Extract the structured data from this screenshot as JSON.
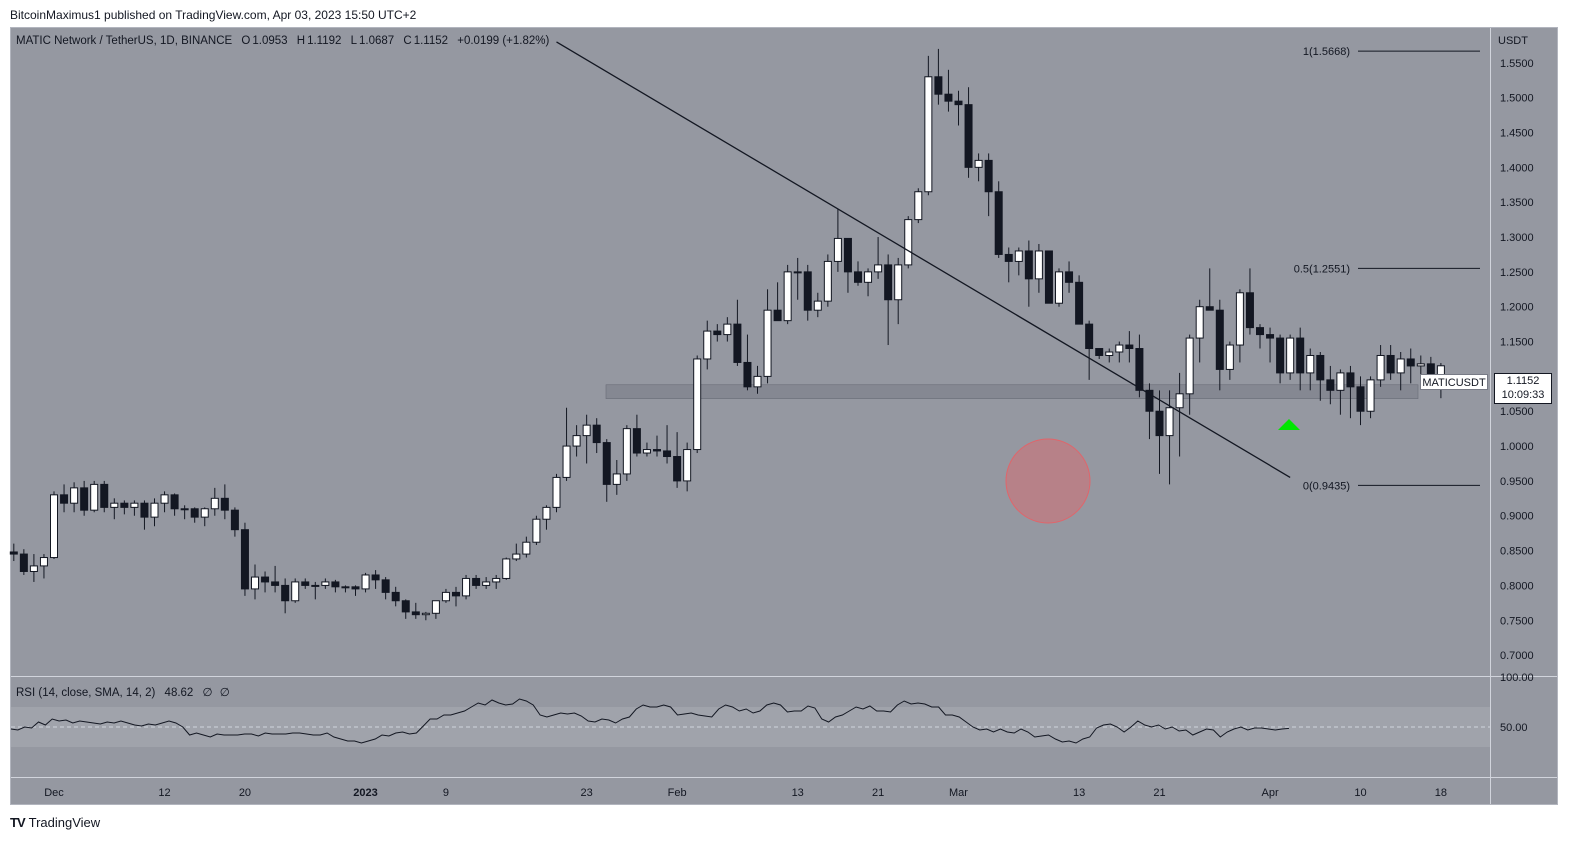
{
  "caption": "BitcoinMaximus1 published on TradingView.com, Apr 03, 2023 15:50 UTC+2",
  "header": {
    "symbol": "MATIC Network / TetherUS, 1D, BINANCE",
    "o_label": "O",
    "o_value": "1.0953",
    "h_label": "H",
    "h_value": "1.1192",
    "l_label": "L",
    "l_value": "1.0687",
    "c_label": "C",
    "c_value": "1.1152",
    "change": "+0.0199 (+1.82%)"
  },
  "axis_currency": "USDT",
  "price_label": {
    "ticker": "MATICUSDT",
    "price": "1.1152",
    "countdown": "10:09:33"
  },
  "rsi_header": {
    "label": "RSI (14, close, SMA, 14, 2)",
    "value": "48.62",
    "extra1": "∅",
    "extra2": "∅"
  },
  "footer_brand": "TradingView",
  "colors": {
    "chart_bg": "#9598a1",
    "candle_up": "#ffffff",
    "candle_down": "#131722",
    "support_zone": "#787b86",
    "circle": "#e0656b",
    "arrow": "#00e600",
    "rsi_band": "#a3a6ae"
  },
  "chart_data": [
    {
      "type": "candlestick",
      "ylim": [
        0.67,
        1.6
      ],
      "y_ticks": [
        "1.5500",
        "1.5000",
        "1.4500",
        "1.4000",
        "1.3500",
        "1.3000",
        "1.2500",
        "1.2000",
        "1.1500",
        "1.1000",
        "1.0500",
        "1.0000",
        "0.9500",
        "0.9000",
        "0.8500",
        "0.8000",
        "0.7500",
        "0.7000"
      ],
      "x_ticks": [
        "Dec",
        "12",
        "20",
        "2023",
        "9",
        "23",
        "Feb",
        "13",
        "21",
        "Mar",
        "13",
        "21",
        "Apr",
        "10",
        "18"
      ],
      "x_tick_days": [
        0,
        11,
        19,
        31,
        39,
        53,
        62,
        74,
        82,
        90,
        102,
        110,
        121,
        130,
        138
      ],
      "start_day_offset": -4,
      "candles_ohlc": [
        [
          0.848,
          0.86,
          0.835,
          0.845
        ],
        [
          0.845,
          0.852,
          0.815,
          0.82
        ],
        [
          0.82,
          0.845,
          0.805,
          0.828
        ],
        [
          0.828,
          0.845,
          0.81,
          0.84
        ],
        [
          0.84,
          0.935,
          0.838,
          0.93
        ],
        [
          0.93,
          0.945,
          0.905,
          0.918
        ],
        [
          0.918,
          0.948,
          0.905,
          0.94
        ],
        [
          0.94,
          0.95,
          0.9,
          0.908
        ],
        [
          0.908,
          0.95,
          0.905,
          0.945
        ],
        [
          0.945,
          0.95,
          0.905,
          0.912
        ],
        [
          0.912,
          0.925,
          0.895,
          0.918
        ],
        [
          0.918,
          0.922,
          0.902,
          0.912
        ],
        [
          0.912,
          0.922,
          0.9,
          0.918
        ],
        [
          0.918,
          0.922,
          0.88,
          0.898
        ],
        [
          0.898,
          0.925,
          0.885,
          0.918
        ],
        [
          0.918,
          0.935,
          0.905,
          0.93
        ],
        [
          0.93,
          0.932,
          0.9,
          0.91
        ],
        [
          0.91,
          0.915,
          0.895,
          0.91
        ],
        [
          0.91,
          0.912,
          0.89,
          0.898
        ],
        [
          0.898,
          0.912,
          0.885,
          0.91
        ],
        [
          0.91,
          0.94,
          0.9,
          0.925
        ],
        [
          0.925,
          0.945,
          0.895,
          0.908
        ],
        [
          0.908,
          0.912,
          0.87,
          0.88
        ],
        [
          0.88,
          0.89,
          0.785,
          0.795
        ],
        [
          0.795,
          0.83,
          0.78,
          0.812
        ],
        [
          0.812,
          0.82,
          0.79,
          0.805
        ],
        [
          0.805,
          0.828,
          0.79,
          0.8
        ],
        [
          0.8,
          0.81,
          0.76,
          0.778
        ],
        [
          0.778,
          0.81,
          0.775,
          0.805
        ],
        [
          0.805,
          0.81,
          0.795,
          0.8
        ],
        [
          0.8,
          0.805,
          0.78,
          0.8
        ],
        [
          0.8,
          0.81,
          0.795,
          0.805
        ],
        [
          0.805,
          0.808,
          0.79,
          0.798
        ],
        [
          0.798,
          0.8,
          0.79,
          0.798
        ],
        [
          0.798,
          0.8,
          0.785,
          0.795
        ],
        [
          0.795,
          0.818,
          0.79,
          0.815
        ],
        [
          0.815,
          0.822,
          0.795,
          0.808
        ],
        [
          0.808,
          0.812,
          0.78,
          0.79
        ],
        [
          0.79,
          0.798,
          0.77,
          0.778
        ],
        [
          0.778,
          0.78,
          0.752,
          0.762
        ],
        [
          0.762,
          0.775,
          0.752,
          0.758
        ],
        [
          0.758,
          0.762,
          0.75,
          0.76
        ],
        [
          0.76,
          0.778,
          0.752,
          0.778
        ],
        [
          0.778,
          0.795,
          0.775,
          0.79
        ],
        [
          0.79,
          0.798,
          0.77,
          0.785
        ],
        [
          0.785,
          0.815,
          0.78,
          0.81
        ],
        [
          0.81,
          0.815,
          0.795,
          0.8
        ],
        [
          0.8,
          0.812,
          0.795,
          0.805
        ],
        [
          0.805,
          0.815,
          0.795,
          0.81
        ],
        [
          0.81,
          0.84,
          0.808,
          0.838
        ],
        [
          0.838,
          0.86,
          0.835,
          0.845
        ],
        [
          0.845,
          0.87,
          0.84,
          0.862
        ],
        [
          0.862,
          0.9,
          0.858,
          0.895
        ],
        [
          0.895,
          0.915,
          0.88,
          0.912
        ],
        [
          0.912,
          0.96,
          0.905,
          0.955
        ],
        [
          0.955,
          1.055,
          0.95,
          1.0
        ],
        [
          1.0,
          1.03,
          0.985,
          1.015
        ],
        [
          1.015,
          1.045,
          0.975,
          1.03
        ],
        [
          1.03,
          1.04,
          0.99,
          1.005
        ],
        [
          1.005,
          1.01,
          0.92,
          0.945
        ],
        [
          0.945,
          0.98,
          0.93,
          0.96
        ],
        [
          0.96,
          1.03,
          0.95,
          1.025
        ],
        [
          1.025,
          1.045,
          0.985,
          0.99
        ],
        [
          0.99,
          1.005,
          0.985,
          0.995
        ],
        [
          0.995,
          1.015,
          0.985,
          0.993
        ],
        [
          0.993,
          1.03,
          0.975,
          0.985
        ],
        [
          0.985,
          1.02,
          0.94,
          0.95
        ],
        [
          0.95,
          1.005,
          0.935,
          0.995
        ],
        [
          0.995,
          1.13,
          0.99,
          1.125
        ],
        [
          1.125,
          1.18,
          1.11,
          1.165
        ],
        [
          1.165,
          1.175,
          1.15,
          1.16
        ],
        [
          1.16,
          1.185,
          1.15,
          1.175
        ],
        [
          1.175,
          1.21,
          1.115,
          1.12
        ],
        [
          1.12,
          1.16,
          1.08,
          1.085
        ],
        [
          1.085,
          1.115,
          1.075,
          1.1
        ],
        [
          1.1,
          1.225,
          1.09,
          1.195
        ],
        [
          1.195,
          1.235,
          1.18,
          1.18
        ],
        [
          1.18,
          1.26,
          1.175,
          1.25
        ],
        [
          1.25,
          1.27,
          1.21,
          1.25
        ],
        [
          1.25,
          1.26,
          1.18,
          1.195
        ],
        [
          1.195,
          1.22,
          1.185,
          1.208
        ],
        [
          1.208,
          1.275,
          1.2,
          1.265
        ],
        [
          1.265,
          1.34,
          1.25,
          1.298
        ],
        [
          1.298,
          1.29,
          1.22,
          1.25
        ],
        [
          1.25,
          1.265,
          1.23,
          1.235
        ],
        [
          1.235,
          1.255,
          1.215,
          1.25
        ],
        [
          1.25,
          1.3,
          1.24,
          1.26
        ],
        [
          1.26,
          1.275,
          1.145,
          1.21
        ],
        [
          1.21,
          1.27,
          1.175,
          1.26
        ],
        [
          1.26,
          1.33,
          1.255,
          1.325
        ],
        [
          1.325,
          1.37,
          1.32,
          1.365
        ],
        [
          1.365,
          1.56,
          1.36,
          1.53
        ],
        [
          1.53,
          1.57,
          1.49,
          1.505
        ],
        [
          1.505,
          1.54,
          1.48,
          1.495
        ],
        [
          1.495,
          1.51,
          1.46,
          1.49
        ],
        [
          1.49,
          1.515,
          1.385,
          1.4
        ],
        [
          1.4,
          1.42,
          1.38,
          1.41
        ],
        [
          1.41,
          1.42,
          1.33,
          1.365
        ],
        [
          1.365,
          1.38,
          1.27,
          1.275
        ],
        [
          1.275,
          1.285,
          1.235,
          1.265
        ],
        [
          1.265,
          1.285,
          1.245,
          1.28
        ],
        [
          1.28,
          1.295,
          1.2,
          1.24
        ],
        [
          1.24,
          1.29,
          1.22,
          1.28
        ],
        [
          1.28,
          1.27,
          1.22,
          1.205
        ],
        [
          1.205,
          1.255,
          1.2,
          1.25
        ],
        [
          1.25,
          1.265,
          1.22,
          1.235
        ],
        [
          1.235,
          1.245,
          1.18,
          1.175
        ],
        [
          1.175,
          1.18,
          1.095,
          1.14
        ],
        [
          1.14,
          1.135,
          1.125,
          1.13
        ],
        [
          1.13,
          1.14,
          1.12,
          1.135
        ],
        [
          1.135,
          1.15,
          1.12,
          1.145
        ],
        [
          1.145,
          1.165,
          1.12,
          1.14
        ],
        [
          1.14,
          1.16,
          1.07,
          1.08
        ],
        [
          1.08,
          1.09,
          1.01,
          1.05
        ],
        [
          1.05,
          1.08,
          0.96,
          1.015
        ],
        [
          1.015,
          1.08,
          0.945,
          1.055
        ],
        [
          1.055,
          1.105,
          0.985,
          1.075
        ],
        [
          1.075,
          1.16,
          1.045,
          1.155
        ],
        [
          1.155,
          1.21,
          1.12,
          1.2
        ],
        [
          1.2,
          1.255,
          1.195,
          1.195
        ],
        [
          1.195,
          1.21,
          1.08,
          1.11
        ],
        [
          1.11,
          1.15,
          1.095,
          1.145
        ],
        [
          1.145,
          1.225,
          1.12,
          1.22
        ],
        [
          1.22,
          1.255,
          1.16,
          1.17
        ],
        [
          1.17,
          1.175,
          1.14,
          1.16
        ],
        [
          1.16,
          1.17,
          1.12,
          1.155
        ],
        [
          1.155,
          1.16,
          1.09,
          1.105
        ],
        [
          1.105,
          1.16,
          1.095,
          1.155
        ],
        [
          1.155,
          1.17,
          1.08,
          1.105
        ],
        [
          1.105,
          1.14,
          1.08,
          1.13
        ],
        [
          1.13,
          1.135,
          1.065,
          1.095
        ],
        [
          1.095,
          1.115,
          1.06,
          1.08
        ],
        [
          1.08,
          1.11,
          1.045,
          1.105
        ],
        [
          1.105,
          1.115,
          1.04,
          1.085
        ],
        [
          1.085,
          1.1,
          1.03,
          1.05
        ],
        [
          1.05,
          1.1,
          1.04,
          1.095
        ],
        [
          1.095,
          1.145,
          1.085,
          1.13
        ],
        [
          1.13,
          1.145,
          1.095,
          1.105
        ],
        [
          1.105,
          1.135,
          1.08,
          1.125
        ],
        [
          1.125,
          1.14,
          1.09,
          1.115
        ],
        [
          1.115,
          1.13,
          1.095,
          1.118
        ],
        [
          1.118,
          1.128,
          1.095,
          1.1
        ],
        [
          1.0953,
          1.1192,
          1.0687,
          1.1152
        ]
      ],
      "support_zone": [
        1.068,
        1.088
      ],
      "trendline": {
        "start": {
          "day": 50,
          "price": 1.58
        },
        "end": {
          "day": 123,
          "price": 0.955
        }
      },
      "fib_levels": [
        {
          "label": "1(1.5668)",
          "price": 1.5668
        },
        {
          "label": "0.5(1.2551)",
          "price": 1.2551
        },
        {
          "label": "0(0.9435)",
          "price": 0.9435
        }
      ]
    },
    {
      "type": "line",
      "title": "RSI (14, close, SMA, 14, 2)",
      "ylim": [
        0,
        100
      ],
      "y_ticks": [
        "100.00",
        "50.00"
      ],
      "band": [
        30,
        70
      ],
      "values": [
        48,
        47,
        50,
        49,
        55,
        52,
        58,
        56,
        57,
        54,
        56,
        55,
        54,
        53,
        55,
        54,
        56,
        54,
        52,
        51,
        53,
        52,
        54,
        56,
        54,
        50,
        42,
        44,
        42,
        40,
        43,
        42,
        42,
        42,
        43,
        43,
        41,
        44,
        43,
        43,
        43,
        44,
        44,
        43,
        42,
        42,
        44,
        40,
        38,
        36,
        36,
        34,
        36,
        38,
        42,
        41,
        44,
        45,
        43,
        44,
        51,
        58,
        58,
        62,
        62,
        64,
        66,
        70,
        74,
        72,
        77,
        74,
        72,
        73,
        78,
        76,
        72,
        62,
        60,
        62,
        64,
        63,
        64,
        61,
        56,
        55,
        58,
        57,
        54,
        58,
        60,
        68,
        72,
        70,
        70,
        72,
        70,
        62,
        63,
        64,
        62,
        61,
        60,
        68,
        72,
        70,
        66,
        68,
        64,
        66,
        72,
        74,
        72,
        65,
        66,
        66,
        71,
        69,
        58,
        55,
        60,
        62,
        66,
        70,
        68,
        71,
        66,
        66,
        65,
        72,
        76,
        73,
        74,
        73,
        70,
        70,
        62,
        62,
        60,
        55,
        50,
        47,
        48,
        45,
        48,
        45,
        44,
        48,
        45,
        40,
        41,
        42,
        38,
        35,
        36,
        34,
        38,
        40,
        49,
        52,
        53,
        50,
        45,
        50,
        56,
        52,
        50,
        52,
        48,
        50,
        46,
        47,
        42,
        45,
        48,
        47,
        40,
        45,
        48,
        50,
        47,
        49,
        49,
        48,
        47,
        48,
        48.62
      ]
    }
  ]
}
